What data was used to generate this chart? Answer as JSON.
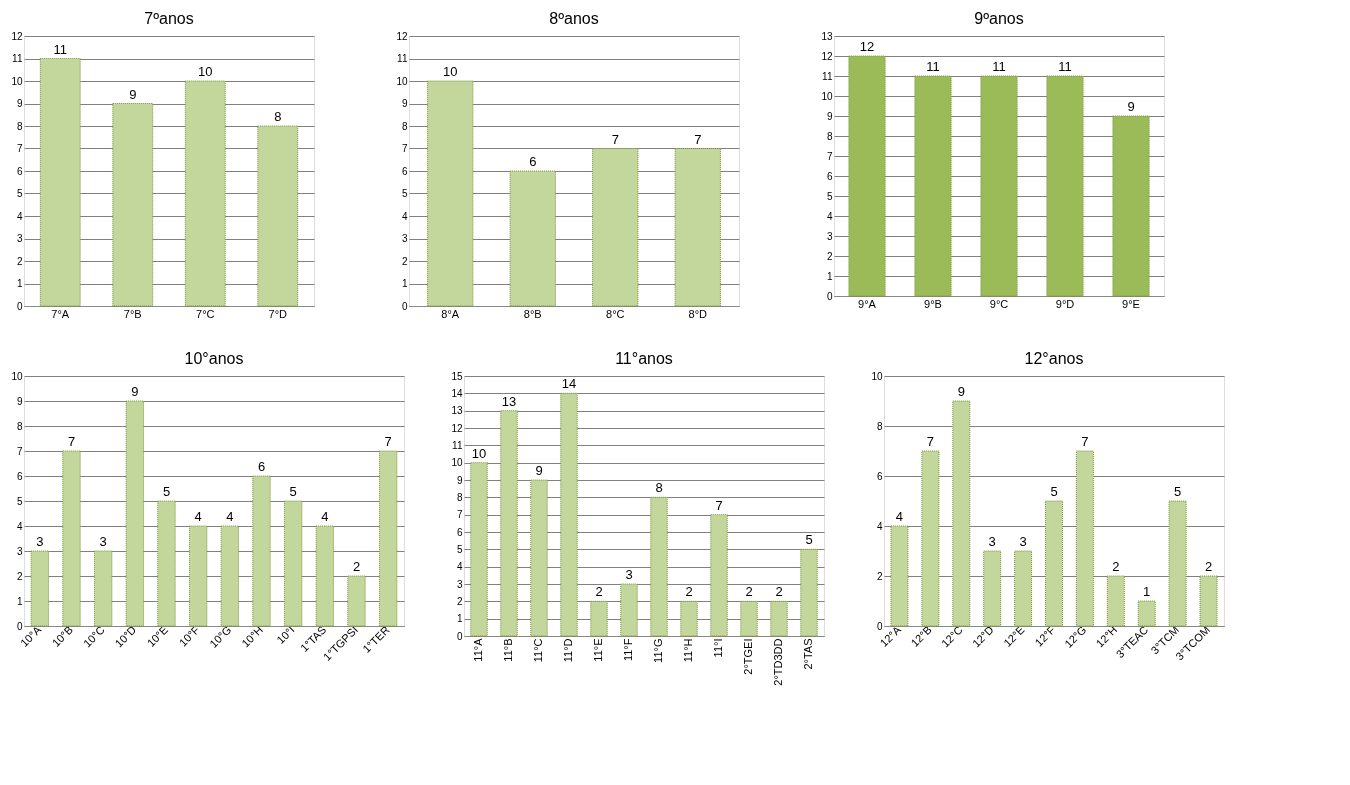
{
  "chart_data": [
    {
      "type": "bar",
      "title": "7ºanos",
      "categories": [
        "7°A",
        "7°B",
        "7°C",
        "7°D"
      ],
      "values": [
        11,
        9,
        10,
        8
      ],
      "color": "#c3d69b",
      "ylim": [
        0,
        12
      ],
      "yticks": [
        0,
        1,
        2,
        3,
        4,
        5,
        6,
        7,
        8,
        9,
        10,
        11,
        12
      ],
      "grid": "y",
      "data_labels": true
    },
    {
      "type": "bar",
      "title": "8ºanos",
      "categories": [
        "8°A",
        "8°B",
        "8°C",
        "8°D"
      ],
      "values": [
        10,
        6,
        7,
        7
      ],
      "color": "#c3d69b",
      "ylim": [
        0,
        12
      ],
      "yticks": [
        0,
        1,
        2,
        3,
        4,
        5,
        6,
        7,
        8,
        9,
        10,
        11,
        12
      ],
      "grid": "y",
      "data_labels": true
    },
    {
      "type": "bar",
      "title": "9ºanos",
      "categories": [
        "9°A",
        "9°B",
        "9°C",
        "9°D",
        "9°E"
      ],
      "values": [
        12,
        11,
        11,
        11,
        9
      ],
      "color": "#9bbb59",
      "ylim": [
        0,
        13
      ],
      "yticks": [
        0,
        1,
        2,
        3,
        4,
        5,
        6,
        7,
        8,
        9,
        10,
        11,
        12,
        13
      ],
      "grid": "y",
      "data_labels": true
    },
    {
      "type": "bar",
      "title": "10°anos",
      "categories": [
        "10°A",
        "10°B",
        "10°C",
        "10°D",
        "10°E",
        "10°F",
        "10°G",
        "10°H",
        "10°I",
        "1°TAS",
        "1°TGPSI",
        "1°TER"
      ],
      "values": [
        3,
        7,
        3,
        9,
        5,
        4,
        4,
        6,
        5,
        4,
        2,
        7
      ],
      "color": "#c3d69b",
      "ylim": [
        0,
        10
      ],
      "yticks": [
        0,
        1,
        2,
        3,
        4,
        5,
        6,
        7,
        8,
        9,
        10
      ],
      "grid": "y",
      "data_labels": true
    },
    {
      "type": "bar",
      "title": "11°anos",
      "categories": [
        "11°A",
        "11°B",
        "11°C",
        "11°D",
        "11°E",
        "11°F",
        "11°G",
        "11°H",
        "11°I",
        "2°TGEI",
        "2°TD3DD",
        "2°TAS"
      ],
      "values": [
        10,
        13,
        9,
        14,
        2,
        3,
        8,
        2,
        7,
        2,
        2,
        5
      ],
      "color": "#c3d69b",
      "ylim": [
        0,
        15
      ],
      "yticks": [
        0,
        1,
        2,
        3,
        4,
        5,
        6,
        7,
        8,
        9,
        10,
        11,
        12,
        13,
        14,
        15
      ],
      "grid": "y",
      "data_labels": true
    },
    {
      "type": "bar",
      "title": "12°anos",
      "categories": [
        "12°A",
        "12°B",
        "12°C",
        "12°D",
        "12°E",
        "12°F",
        "12°G",
        "12°H",
        "3°TEAC",
        "3°TCM",
        "3°TCOM"
      ],
      "values": [
        4,
        7,
        9,
        3,
        3,
        5,
        7,
        2,
        1,
        5,
        2
      ],
      "color": "#c3d69b",
      "ylim": [
        0,
        10
      ],
      "yticks": [
        0,
        2,
        4,
        6,
        8,
        10
      ],
      "grid": "y",
      "data_labels": true
    }
  ]
}
